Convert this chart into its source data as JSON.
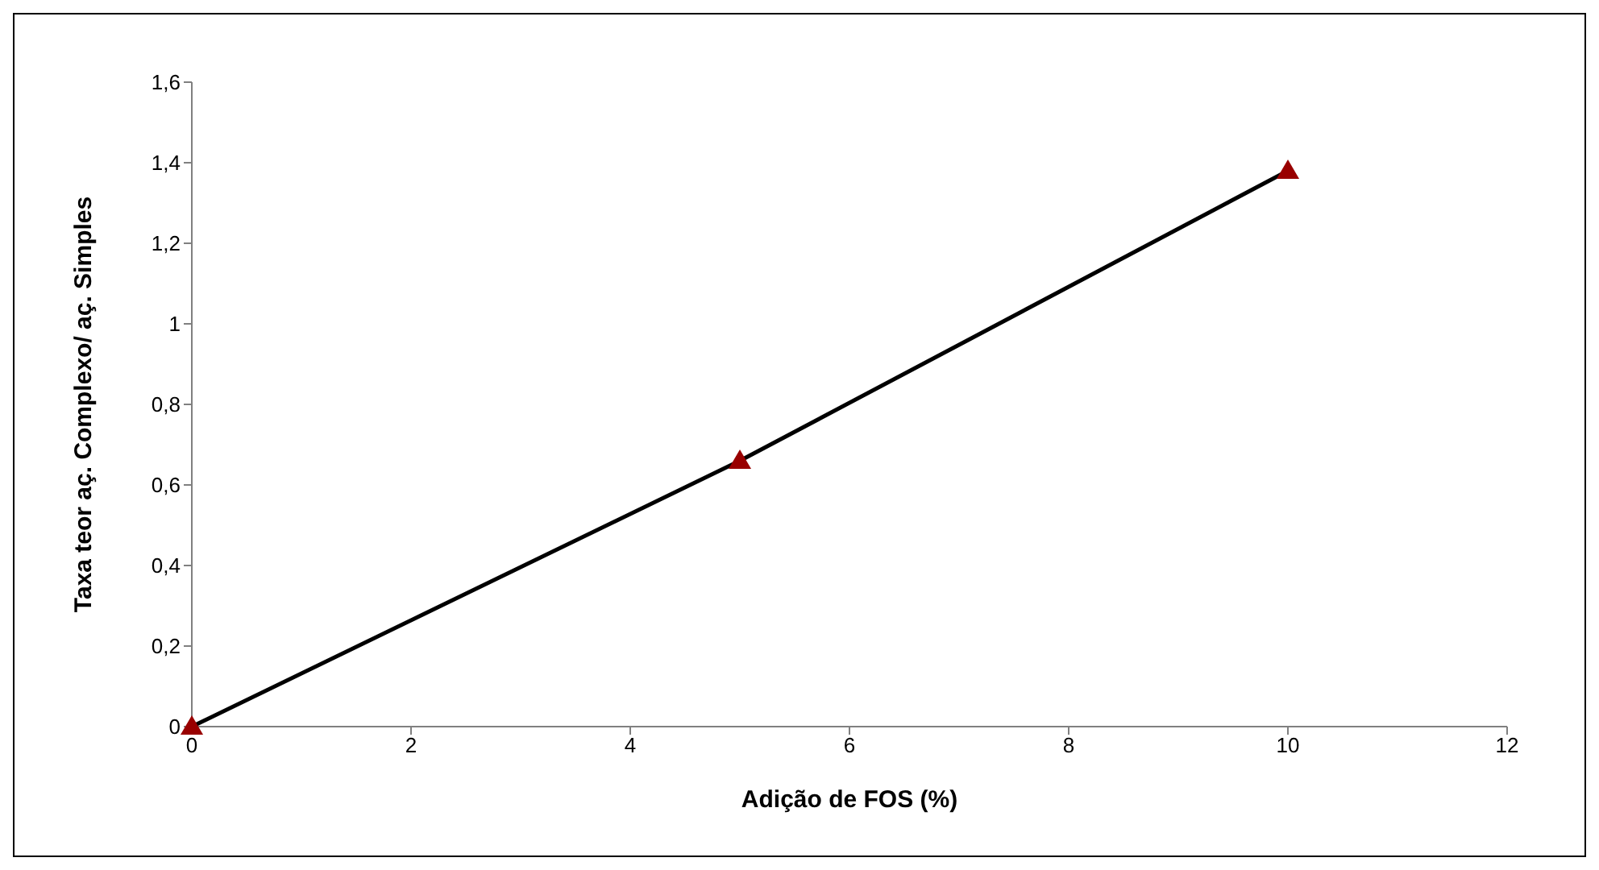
{
  "chart_data": {
    "type": "line",
    "xlabel": "Adição de FOS (%)",
    "ylabel": "Taxa teor aç. Complexo/ aç. Simples",
    "x": [
      0,
      5,
      10
    ],
    "series": [
      {
        "color": "#000000",
        "values": [
          0,
          0.66,
          1.38
        ],
        "marker": "none"
      },
      {
        "type": "scatter",
        "color": "#990000",
        "values": [
          0,
          0.66,
          1.38
        ],
        "marker": "triangle"
      }
    ],
    "xlim": [
      0,
      12
    ],
    "xticks": [
      0,
      2,
      4,
      6,
      8,
      10,
      12
    ],
    "ylim": [
      0,
      1.6
    ],
    "yticks": [
      0,
      {
        "value": 0.2,
        "label": "0,2"
      },
      {
        "value": 0.4,
        "label": "0,4"
      },
      {
        "value": 0.6,
        "label": "0,6"
      },
      {
        "value": 0.8,
        "label": "0,8"
      },
      1,
      {
        "value": 1.2,
        "label": "1,2"
      },
      {
        "value": 1.4,
        "label": "1,4"
      },
      {
        "value": 1.6,
        "label": "1,6"
      }
    ],
    "grid": false,
    "legend": false
  }
}
